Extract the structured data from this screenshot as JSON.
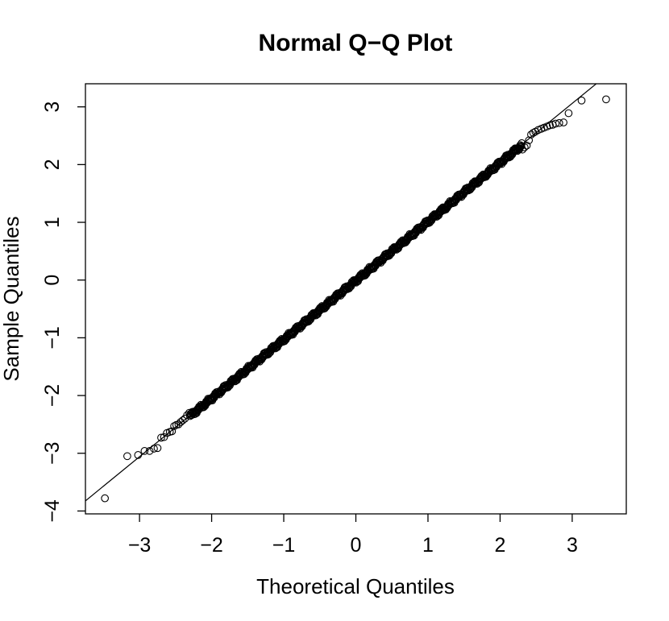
{
  "chart_data": {
    "type": "scatter",
    "title": "Normal Q−Q Plot",
    "xlabel": "Theoretical Quantiles",
    "ylabel": "Sample Quantiles",
    "xlim": [
      -3.75,
      3.75
    ],
    "ylim": [
      -4.05,
      3.4
    ],
    "xticks": [
      -3,
      -2,
      -1,
      0,
      1,
      2,
      3
    ],
    "xtick_labels": [
      "−3",
      "−2",
      "−1",
      "0",
      "1",
      "2",
      "3"
    ],
    "yticks": [
      -4,
      -3,
      -2,
      -1,
      0,
      1,
      2,
      3
    ],
    "ytick_labels": [
      "−4",
      "−3",
      "−2",
      "−1",
      "0",
      "1",
      "2",
      "3"
    ],
    "grid": false,
    "legend": "none",
    "reference_line": {
      "intercept": 0.0,
      "slope": 1.02
    },
    "dense_band": {
      "from": -2.3,
      "to": 2.3,
      "count": 700
    },
    "points": [
      [
        -3.48,
        -3.78
      ],
      [
        -3.17,
        -3.05
      ],
      [
        -3.02,
        -3.03
      ],
      [
        -2.93,
        -2.96
      ],
      [
        -2.86,
        -2.96
      ],
      [
        -2.8,
        -2.92
      ],
      [
        -2.75,
        -2.91
      ],
      [
        -2.7,
        -2.73
      ],
      [
        -2.66,
        -2.72
      ],
      [
        -2.62,
        -2.65
      ],
      [
        -2.58,
        -2.63
      ],
      [
        -2.55,
        -2.62
      ],
      [
        -2.52,
        -2.53
      ],
      [
        -2.49,
        -2.51
      ],
      [
        -2.46,
        -2.5
      ],
      [
        -2.43,
        -2.46
      ],
      [
        -2.4,
        -2.43
      ],
      [
        -2.37,
        -2.4
      ],
      [
        -2.34,
        -2.34
      ],
      [
        -2.31,
        -2.3
      ],
      [
        2.31,
        2.26
      ],
      [
        2.34,
        2.3
      ],
      [
        2.37,
        2.33
      ],
      [
        2.4,
        2.42
      ],
      [
        2.43,
        2.52
      ],
      [
        2.46,
        2.55
      ],
      [
        2.49,
        2.57
      ],
      [
        2.53,
        2.6
      ],
      [
        2.57,
        2.62
      ],
      [
        2.61,
        2.64
      ],
      [
        2.65,
        2.66
      ],
      [
        2.69,
        2.68
      ],
      [
        2.73,
        2.69
      ],
      [
        2.77,
        2.71
      ],
      [
        2.82,
        2.72
      ],
      [
        2.88,
        2.73
      ],
      [
        2.95,
        2.89
      ],
      [
        3.13,
        3.11
      ],
      [
        3.47,
        3.13
      ]
    ]
  }
}
